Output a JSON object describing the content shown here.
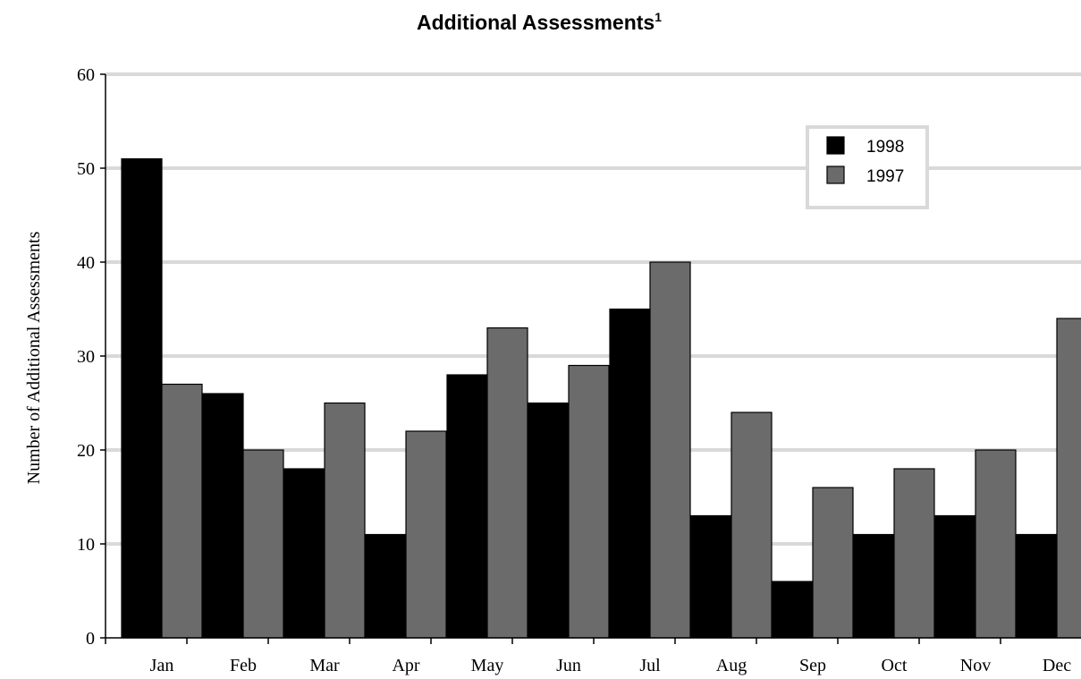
{
  "chart_data": {
    "type": "bar",
    "title": "Additional Assessments",
    "title_superscript": "1",
    "xlabel": "",
    "ylabel": "Number of Additional Assessments",
    "ylim": [
      0,
      60
    ],
    "yticks": [
      "0",
      "10",
      "20",
      "30",
      "40",
      "50",
      "60"
    ],
    "categories": [
      "Jan",
      "Feb",
      "Mar",
      "Apr",
      "May",
      "Jun",
      "Jul",
      "Aug",
      "Sep",
      "Oct",
      "Nov",
      "Dec"
    ],
    "series": [
      {
        "name": "1998",
        "color": "#000000",
        "values": [
          51,
          26,
          18,
          11,
          28,
          25,
          35,
          13,
          6,
          11,
          13,
          11
        ]
      },
      {
        "name": "1997",
        "color": "#6b6b6b",
        "values": [
          27,
          20,
          25,
          22,
          33,
          29,
          40,
          24,
          16,
          18,
          20,
          34
        ]
      }
    ],
    "grid": true,
    "legend_position": "top-right"
  }
}
